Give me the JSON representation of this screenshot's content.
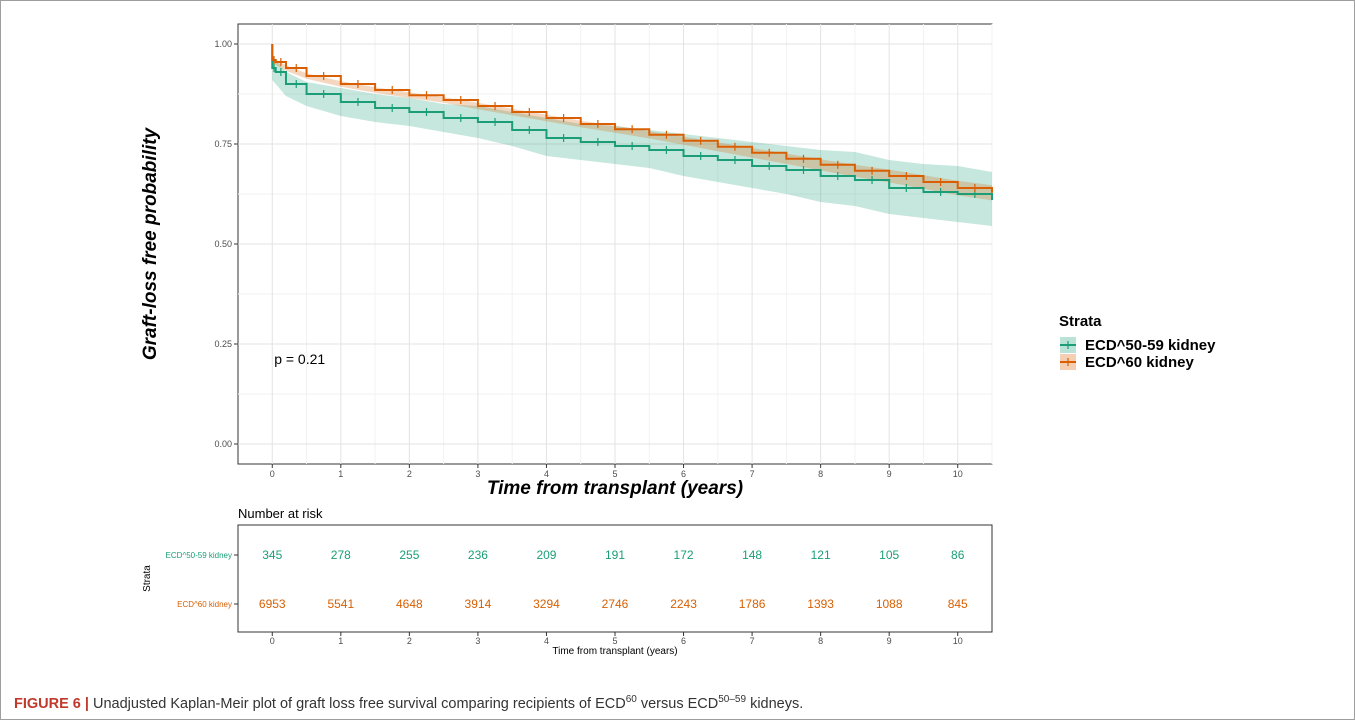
{
  "chart_data": {
    "type": "line",
    "xlabel": "Time from transplant (years)",
    "ylabel": "Graft-loss free probability",
    "xlim": [
      -0.5,
      10.5
    ],
    "ylim": [
      -0.05,
      1.05
    ],
    "x_ticks": [
      0,
      1,
      2,
      3,
      4,
      5,
      6,
      7,
      8,
      9,
      10
    ],
    "y_ticks": [
      0.0,
      0.25,
      0.5,
      0.75,
      1.0
    ],
    "y_tick_labels": [
      "0.00",
      "0.25",
      "0.50",
      "0.75",
      "1.00"
    ],
    "grid": true,
    "annotation": "p = 0.21",
    "annotation_position": {
      "x": 0.4,
      "y": 0.2
    },
    "legend": {
      "title": "Strata",
      "placement": "right"
    },
    "series": [
      {
        "name": "ECD^50-59 kidney",
        "color": "#1b9e77",
        "x": [
          0,
          0.05,
          0.2,
          0.5,
          1,
          1.5,
          2,
          2.5,
          3,
          3.5,
          4,
          4.5,
          5,
          5.5,
          6,
          6.5,
          7,
          7.5,
          8,
          8.5,
          9,
          9.5,
          10,
          10.5
        ],
        "y": [
          0.94,
          0.93,
          0.9,
          0.875,
          0.855,
          0.84,
          0.83,
          0.815,
          0.805,
          0.785,
          0.765,
          0.755,
          0.745,
          0.735,
          0.72,
          0.71,
          0.695,
          0.685,
          0.67,
          0.66,
          0.64,
          0.63,
          0.625,
          0.61
        ],
        "ci_upper": [
          0.97,
          0.96,
          0.93,
          0.905,
          0.89,
          0.875,
          0.865,
          0.85,
          0.845,
          0.83,
          0.815,
          0.8,
          0.795,
          0.785,
          0.775,
          0.765,
          0.755,
          0.745,
          0.735,
          0.73,
          0.71,
          0.7,
          0.695,
          0.68
        ],
        "ci_lower": [
          0.91,
          0.9,
          0.87,
          0.845,
          0.82,
          0.805,
          0.795,
          0.78,
          0.765,
          0.745,
          0.72,
          0.71,
          0.7,
          0.69,
          0.67,
          0.655,
          0.64,
          0.625,
          0.605,
          0.595,
          0.575,
          0.565,
          0.555,
          0.545
        ]
      },
      {
        "name": "ECD^60 kidney",
        "color": "#d95f02",
        "x": [
          0,
          0.05,
          0.2,
          0.5,
          1,
          1.5,
          2,
          2.5,
          3,
          3.5,
          4,
          4.5,
          5,
          5.5,
          6,
          6.5,
          7,
          7.5,
          8,
          8.5,
          9,
          9.5,
          10,
          10.5
        ],
        "y": [
          0.96,
          0.955,
          0.94,
          0.92,
          0.9,
          0.885,
          0.872,
          0.86,
          0.845,
          0.83,
          0.815,
          0.8,
          0.787,
          0.773,
          0.758,
          0.743,
          0.728,
          0.713,
          0.698,
          0.683,
          0.67,
          0.655,
          0.64,
          0.628
        ],
        "ci_upper": [
          0.967,
          0.962,
          0.947,
          0.927,
          0.907,
          0.892,
          0.879,
          0.867,
          0.853,
          0.838,
          0.823,
          0.808,
          0.796,
          0.782,
          0.768,
          0.754,
          0.74,
          0.726,
          0.712,
          0.698,
          0.686,
          0.672,
          0.658,
          0.647
        ],
        "ci_lower": [
          0.953,
          0.948,
          0.933,
          0.913,
          0.893,
          0.878,
          0.865,
          0.853,
          0.837,
          0.822,
          0.807,
          0.792,
          0.778,
          0.764,
          0.748,
          0.732,
          0.716,
          0.7,
          0.684,
          0.668,
          0.654,
          0.638,
          0.622,
          0.609
        ]
      }
    ],
    "risk_table": {
      "title": "Number at risk",
      "y_axis_title": "Strata",
      "x_axis_title": "Time from transplant (years)",
      "times": [
        0,
        1,
        2,
        3,
        4,
        5,
        6,
        7,
        8,
        9,
        10
      ],
      "rows": [
        {
          "label": "ECD^50-59 kidney",
          "color": "#1b9e77",
          "values": [
            "345",
            "278",
            "255",
            "236",
            "209",
            "191",
            "172",
            "148",
            "121",
            "105",
            "86"
          ]
        },
        {
          "label": "ECD^60 kidney",
          "color": "#d95f02",
          "values": [
            "6953",
            "5541",
            "4648",
            "3914",
            "3294",
            "2746",
            "2243",
            "1786",
            "1393",
            "1088",
            "845"
          ]
        }
      ]
    }
  },
  "caption": {
    "label": "FIGURE 6 |",
    "text_before": " Unadjusted Kaplan-Meir plot of graft loss free survival comparing recipients of ECD",
    "sup1": "60",
    "text_middle": " versus ECD",
    "sup2": "50–59",
    "text_after": " kidneys."
  }
}
